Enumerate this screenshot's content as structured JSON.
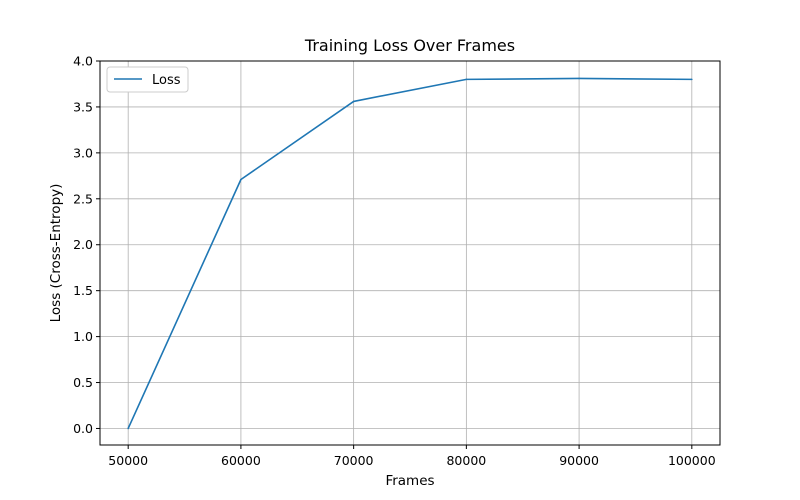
{
  "chart_data": {
    "type": "line",
    "title": "Training Loss Over Frames",
    "xlabel": "Frames",
    "ylabel": "Loss (Cross-Entropy)",
    "x": [
      50000,
      60000,
      70000,
      80000,
      90000,
      100000
    ],
    "series": [
      {
        "name": "Loss",
        "values": [
          0.0,
          2.71,
          3.56,
          3.8,
          3.81,
          3.8
        ],
        "color": "#1f77b4"
      }
    ],
    "xlim": [
      47500,
      102500
    ],
    "ylim": [
      -0.18,
      4.0
    ],
    "xticks": [
      50000,
      60000,
      70000,
      80000,
      90000,
      100000
    ],
    "xtick_labels": [
      "50000",
      "60000",
      "70000",
      "80000",
      "90000",
      "100000"
    ],
    "yticks": [
      0.0,
      0.5,
      1.0,
      1.5,
      2.0,
      2.5,
      3.0,
      3.5,
      4.0
    ],
    "ytick_labels": [
      "0.0",
      "0.5",
      "1.0",
      "1.5",
      "2.0",
      "2.5",
      "3.0",
      "3.5",
      "4.0"
    ],
    "grid": true,
    "legend": "top-left"
  }
}
